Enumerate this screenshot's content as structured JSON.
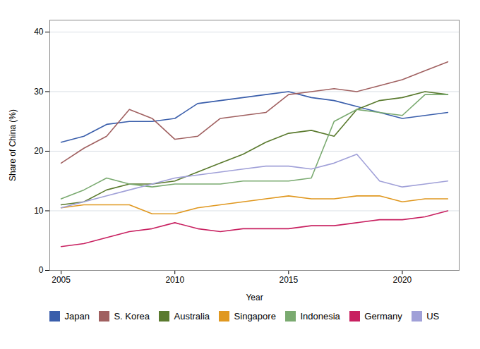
{
  "chart_data": {
    "type": "line",
    "xlabel": "Year",
    "ylabel": "Share of China (%)",
    "x": [
      2005,
      2006,
      2007,
      2008,
      2009,
      2010,
      2011,
      2012,
      2013,
      2014,
      2015,
      2016,
      2017,
      2018,
      2019,
      2020,
      2021,
      2022
    ],
    "series": [
      {
        "name": "Japan",
        "color": "#3a5eab",
        "values": [
          21.5,
          22.5,
          24.5,
          25.0,
          25.0,
          25.5,
          28.0,
          28.5,
          29.0,
          29.5,
          30.0,
          29.0,
          28.5,
          27.5,
          26.5,
          25.5,
          26.0,
          26.5
        ]
      },
      {
        "name": "S. Korea",
        "color": "#a06060",
        "values": [
          18.0,
          20.5,
          22.5,
          27.0,
          25.5,
          22.0,
          22.5,
          25.5,
          26.0,
          26.5,
          29.5,
          30.0,
          30.5,
          30.0,
          31.0,
          32.0,
          33.5,
          35.0
        ]
      },
      {
        "name": "Australia",
        "color": "#5a7a2e",
        "values": [
          11.0,
          11.5,
          13.5,
          14.5,
          14.5,
          15.0,
          16.5,
          18.0,
          19.5,
          21.5,
          23.0,
          23.5,
          22.5,
          27.0,
          28.5,
          29.0,
          30.0,
          29.5
        ]
      },
      {
        "name": "Singapore",
        "color": "#e09820",
        "values": [
          10.5,
          11.0,
          11.0,
          11.0,
          9.5,
          9.5,
          10.5,
          11.0,
          11.5,
          12.0,
          12.5,
          12.0,
          12.0,
          12.5,
          12.5,
          11.5,
          12.0,
          12.0
        ]
      },
      {
        "name": "Indonesia",
        "color": "#7aaa70",
        "values": [
          12.0,
          13.5,
          15.5,
          14.5,
          14.0,
          14.5,
          14.5,
          14.5,
          15.0,
          15.0,
          15.0,
          15.5,
          25.0,
          27.0,
          26.5,
          26.0,
          29.5,
          29.5
        ]
      },
      {
        "name": "Germany",
        "color": "#c82060",
        "values": [
          4.0,
          4.5,
          5.5,
          6.5,
          7.0,
          8.0,
          7.0,
          6.5,
          7.0,
          7.0,
          7.0,
          7.5,
          7.5,
          8.0,
          8.5,
          8.5,
          9.0,
          10.0
        ]
      },
      {
        "name": "US",
        "color": "#a0a0d8",
        "values": [
          10.5,
          11.5,
          12.5,
          13.5,
          14.5,
          15.5,
          16.0,
          16.5,
          17.0,
          17.5,
          17.5,
          17.0,
          18.0,
          19.5,
          15.0,
          14.0,
          14.5,
          15.0
        ]
      }
    ],
    "xlim": [
      2004.5,
      2022.5
    ],
    "ylim": [
      0,
      42
    ],
    "xticks": [
      2005,
      2010,
      2015,
      2020
    ],
    "yticks": [
      0,
      10,
      20,
      30,
      40
    ],
    "grid": true,
    "legend": "bottom"
  }
}
